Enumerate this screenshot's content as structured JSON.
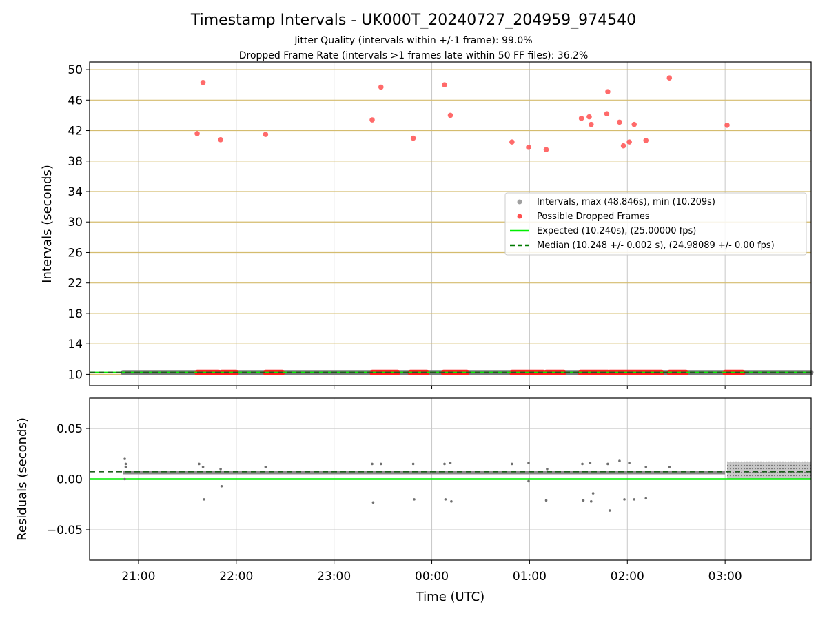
{
  "title": "Timestamp Intervals - UK000T_20240727_204959_974540",
  "subtitle_lines": [
    "Jitter Quality (intervals within +/-1 frame): 99.0%",
    "Dropped Frame Rate (intervals >1 frames late within 50 FF files): 36.2%"
  ],
  "colors": {
    "interval": "#808080",
    "dropped": "#ff3b3b",
    "expected": "#00ee00",
    "median": "#007a00",
    "ygrid_top": "#d4bc6e",
    "grid": "#c8c8c8"
  },
  "chart_data": [
    {
      "type": "scatter",
      "panel": "intervals",
      "ylabel": "Intervals (seconds)",
      "ylim": [
        8.5,
        51
      ],
      "yticks": [
        10,
        14,
        18,
        22,
        26,
        30,
        34,
        38,
        42,
        46,
        50
      ],
      "ytick_labels": [
        "10",
        "14",
        "18",
        "22",
        "26",
        "30",
        "34",
        "38",
        "42",
        "46",
        "50"
      ],
      "xlim_hours": [
        20.5,
        27.88
      ],
      "grid": "both",
      "legend_position": "right",
      "legend": [
        {
          "label": "Intervals, max (48.846s), min (10.209s)",
          "kind": "marker",
          "color": "#a0a0a0"
        },
        {
          "label": "Possible Dropped Frames",
          "kind": "marker",
          "color": "#ff5050"
        },
        {
          "label": "Expected (10.240s), (25.00000 fps)",
          "kind": "line",
          "color": "#00ee00"
        },
        {
          "label": "Median (10.248 +/- 0.002 s), (24.98089 +/- 0.00 fps)",
          "kind": "dashed",
          "color": "#007a00"
        }
      ],
      "expected_value": 10.24,
      "median_value": 10.248,
      "interval_segments": [
        [
          20.84,
          27.88
        ]
      ],
      "dropped_baseline_segments": [
        [
          21.6,
          21.82
        ],
        [
          21.85,
          22.0
        ],
        [
          22.3,
          22.47
        ],
        [
          23.39,
          23.65
        ],
        [
          23.78,
          23.95
        ],
        [
          24.12,
          24.36
        ],
        [
          24.82,
          25.14
        ],
        [
          25.17,
          25.35
        ],
        [
          25.52,
          25.8
        ],
        [
          25.82,
          26.35
        ],
        [
          26.43,
          26.6
        ],
        [
          27.0,
          27.18
        ]
      ],
      "dropped_points": [
        {
          "x": 21.6,
          "y": 41.6
        },
        {
          "x": 21.66,
          "y": 48.3
        },
        {
          "x": 21.84,
          "y": 40.8
        },
        {
          "x": 22.3,
          "y": 41.5
        },
        {
          "x": 23.39,
          "y": 43.4
        },
        {
          "x": 23.48,
          "y": 47.7
        },
        {
          "x": 23.81,
          "y": 41.0
        },
        {
          "x": 24.13,
          "y": 48.0
        },
        {
          "x": 24.19,
          "y": 44.0
        },
        {
          "x": 24.82,
          "y": 40.5
        },
        {
          "x": 24.99,
          "y": 39.8
        },
        {
          "x": 25.17,
          "y": 39.5
        },
        {
          "x": 25.53,
          "y": 43.6
        },
        {
          "x": 25.61,
          "y": 43.8
        },
        {
          "x": 25.63,
          "y": 42.8
        },
        {
          "x": 25.79,
          "y": 44.2
        },
        {
          "x": 25.8,
          "y": 47.1
        },
        {
          "x": 25.92,
          "y": 43.1
        },
        {
          "x": 25.96,
          "y": 40.0
        },
        {
          "x": 26.02,
          "y": 40.5
        },
        {
          "x": 26.07,
          "y": 42.8
        },
        {
          "x": 26.19,
          "y": 40.7
        },
        {
          "x": 26.43,
          "y": 48.9
        },
        {
          "x": 27.02,
          "y": 42.7
        }
      ]
    },
    {
      "type": "scatter",
      "panel": "residuals",
      "xlabel": "Time (UTC)",
      "ylabel": "Residuals (seconds)",
      "ylim": [
        -0.08,
        0.08
      ],
      "yticks": [
        -0.05,
        0.0,
        0.05
      ],
      "ytick_labels": [
        "−0.05",
        "0.00",
        "0.05"
      ],
      "xlim_hours": [
        20.5,
        27.88
      ],
      "xticks": [
        21,
        22,
        23,
        24,
        25,
        26,
        27
      ],
      "xtick_labels": [
        "21:00",
        "22:00",
        "23:00",
        "00:00",
        "01:00",
        "02:00",
        "03:00"
      ],
      "grid": "both",
      "expected_value": 0.0,
      "median_value": 0.0075,
      "residual_points": [
        {
          "x": 20.86,
          "y": 0.02
        },
        {
          "x": 20.87,
          "y": 0.015
        },
        {
          "x": 20.87,
          "y": 0.012
        },
        {
          "x": 20.86,
          "y": 0.0
        },
        {
          "x": 21.62,
          "y": 0.015
        },
        {
          "x": 21.66,
          "y": 0.012
        },
        {
          "x": 21.67,
          "y": -0.02
        },
        {
          "x": 21.84,
          "y": 0.01
        },
        {
          "x": 21.85,
          "y": -0.007
        },
        {
          "x": 22.3,
          "y": 0.012
        },
        {
          "x": 23.39,
          "y": 0.015
        },
        {
          "x": 23.4,
          "y": -0.023
        },
        {
          "x": 23.48,
          "y": 0.015
        },
        {
          "x": 23.81,
          "y": 0.015
        },
        {
          "x": 23.82,
          "y": -0.02
        },
        {
          "x": 24.13,
          "y": 0.015
        },
        {
          "x": 24.14,
          "y": -0.02
        },
        {
          "x": 24.19,
          "y": 0.016
        },
        {
          "x": 24.2,
          "y": -0.022
        },
        {
          "x": 24.82,
          "y": 0.015
        },
        {
          "x": 24.99,
          "y": 0.016
        },
        {
          "x": 24.99,
          "y": -0.002
        },
        {
          "x": 25.17,
          "y": -0.021
        },
        {
          "x": 25.18,
          "y": 0.01
        },
        {
          "x": 25.54,
          "y": 0.015
        },
        {
          "x": 25.55,
          "y": -0.021
        },
        {
          "x": 25.62,
          "y": 0.016
        },
        {
          "x": 25.63,
          "y": -0.022
        },
        {
          "x": 25.65,
          "y": -0.014
        },
        {
          "x": 25.8,
          "y": 0.015
        },
        {
          "x": 25.82,
          "y": -0.031
        },
        {
          "x": 25.92,
          "y": 0.018
        },
        {
          "x": 25.97,
          "y": -0.02
        },
        {
          "x": 26.02,
          "y": 0.016
        },
        {
          "x": 26.07,
          "y": -0.02
        },
        {
          "x": 26.19,
          "y": -0.019
        },
        {
          "x": 26.19,
          "y": 0.012
        },
        {
          "x": 26.43,
          "y": 0.012
        }
      ]
    }
  ]
}
